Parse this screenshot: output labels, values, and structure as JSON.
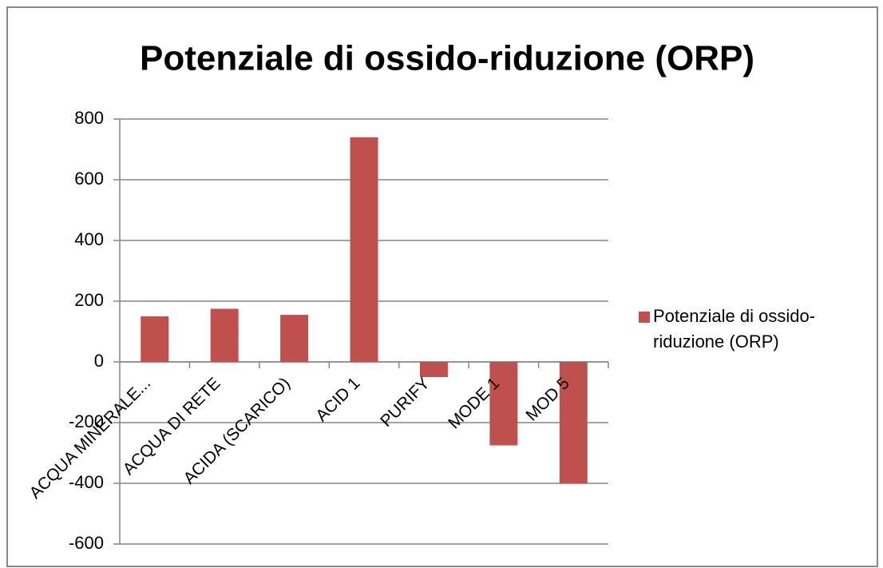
{
  "chart_data": {
    "type": "bar",
    "title": "Potenziale di ossido-riduzione (ORP)",
    "categories": [
      "ACQUA MINERALE...",
      "ACQUA DI RETE",
      "ACIDA (SCARICO)",
      "ACID 1",
      "PURIFY",
      "MODE 1",
      "MOD 5"
    ],
    "series": [
      {
        "name": "Potenziale di ossido-riduzione (ORP)",
        "color": "#c0504d",
        "values": [
          150,
          175,
          155,
          740,
          -50,
          -275,
          -400
        ]
      }
    ],
    "ylim": [
      -600,
      800
    ],
    "yticks": [
      -600,
      -400,
      -200,
      0,
      200,
      400,
      600,
      800
    ],
    "grid": true,
    "legend": "right"
  }
}
